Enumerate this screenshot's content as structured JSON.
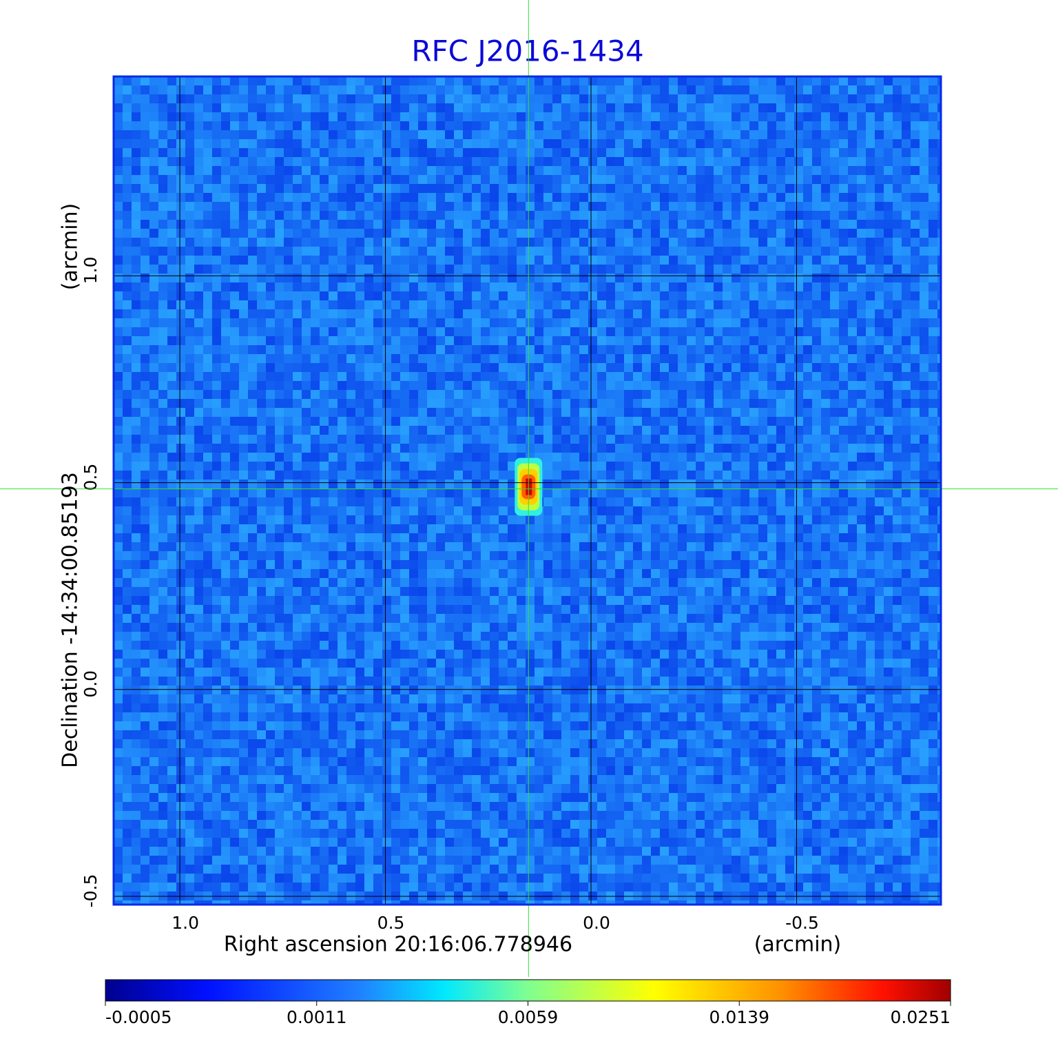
{
  "chart_data": {
    "type": "image",
    "title": "RFC J2016-1434",
    "x_label": "Right ascension  20:16:06.778946",
    "x_unit": "(arcmin)",
    "y_label": "Declination  -14:34:00.85193",
    "y_unit": "(arcmin)",
    "xlim": [
      1.161,
      -0.851
    ],
    "ylim": [
      -0.52,
      1.482
    ],
    "xticks": [
      {
        "value": 1,
        "label": "1.0"
      },
      0.5,
      {
        "value": 0,
        "label": "0.0"
      },
      -0.5
    ],
    "yticks": [
      -0.5,
      {
        "value": 0,
        "label": "0.0"
      },
      0.5,
      {
        "value": 1,
        "label": "1.0"
      }
    ],
    "grid": true,
    "source": {
      "x": 0.152,
      "y": 0.49,
      "peak": 0.0251
    },
    "colorbar_ticks": [
      -0.0005,
      0.0011,
      0.0059,
      0.0139,
      0.0251
    ]
  }
}
